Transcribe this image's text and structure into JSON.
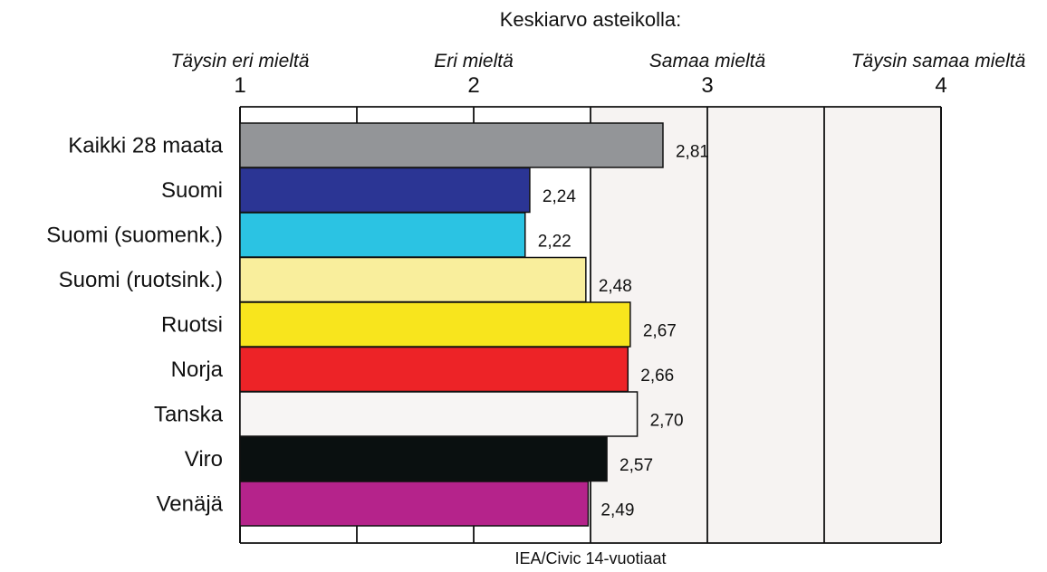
{
  "chart_data": {
    "type": "bar",
    "orientation": "horizontal",
    "title": "Keskiarvo asteikolla:",
    "scale_labels": [
      "Täysin eri mieltä",
      "Eri mieltä",
      "Samaa mieltä",
      "Täysin samaa mieltä"
    ],
    "tick_labels": [
      "1",
      "2",
      "3",
      "4"
    ],
    "xlim": [
      1,
      4
    ],
    "grid": true,
    "categories": [
      "Kaikki 28 maata",
      "Suomi",
      "Suomi (suomenk.)",
      "Suomi (ruotsink.)",
      "Ruotsi",
      "Norja",
      "Tanska",
      "Viro",
      "Venäjä"
    ],
    "values": [
      2.81,
      2.24,
      2.22,
      2.48,
      2.67,
      2.66,
      2.7,
      2.57,
      2.49
    ],
    "value_labels": [
      "2,81",
      "2,24",
      "2,22",
      "2,48",
      "2,67",
      "2,66",
      "2,70",
      "2,57",
      "2,49"
    ],
    "colors": [
      "#939598",
      "#2b3594",
      "#2bc3e3",
      "#f9ee9c",
      "#f8e51d",
      "#ed2327",
      "#f7f5f4",
      "#0a1010",
      "#b5238b"
    ],
    "source": "IEA/Civic 14-vuotiaat"
  }
}
